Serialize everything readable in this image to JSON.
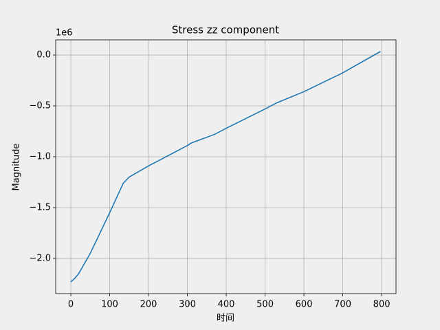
{
  "chart_data": {
    "type": "line",
    "title": "Stress zz component",
    "x_label": "时间",
    "y_label": "Magnitude",
    "offset_text": "1e6",
    "x": [
      0,
      10,
      20,
      50,
      100,
      135,
      150,
      200,
      230,
      300,
      310,
      370,
      400,
      500,
      530,
      600,
      700,
      797
    ],
    "series": [
      {
        "color": "#1f77b4",
        "values": [
          -2230000,
          -2196000,
          -2150000,
          -1950000,
          -1550000,
          -1260000,
          -1200000,
          -1090000,
          -1030000,
          -890000,
          -865000,
          -780000,
          -720000,
          -530000,
          -470000,
          -360000,
          -175000,
          35000
        ]
      }
    ],
    "xlim": [
      -39,
      837
    ],
    "xticks": [
      0,
      100,
      200,
      300,
      400,
      500,
      600,
      700,
      800
    ],
    "ylim": [
      -2345000,
      149000
    ],
    "yticks": [
      {
        "value": -2000000,
        "label": "−2.0"
      },
      {
        "value": -1500000,
        "label": "−1.5"
      },
      {
        "value": -1000000,
        "label": "−1.0"
      },
      {
        "value": -500000,
        "label": "−0.5"
      },
      {
        "value": 0,
        "label": "0.0"
      }
    ],
    "grid": true
  }
}
